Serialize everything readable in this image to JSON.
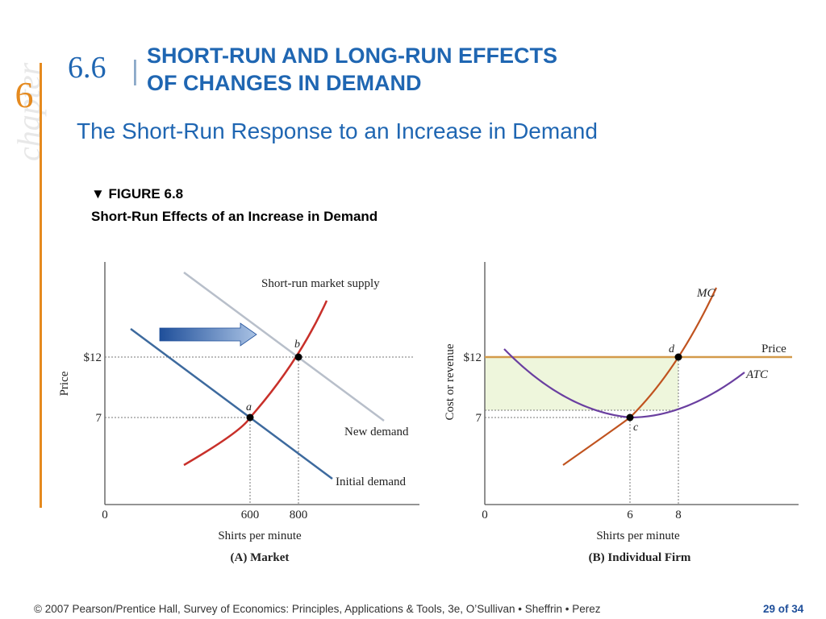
{
  "slide": {
    "chapter_word": "chapter",
    "chapter_number": "6",
    "section_number": "6.6",
    "section_separator": "|",
    "section_title_line1": "SHORT-RUN AND LONG-RUN EFFECTS",
    "section_title_line2": "OF CHANGES IN DEMAND",
    "subtitle": "The Short-Run Response to an Increase in Demand",
    "figure_label": "▼ FIGURE 6.8",
    "figure_caption": "Short-Run Effects of an Increase in Demand",
    "footer": "© 2007 Pearson/Prentice Hall, Survey of Economics: Principles, Applications & Tools, 3e, O’Sullivan • Sheffrin • Perez",
    "page": "29 of 34"
  },
  "colors": {
    "title_blue": "#1f66b2",
    "accent_orange": "#e58a1f",
    "supply_red": "#c8302a",
    "demand_blue": "#3d6a9e",
    "new_demand_gray": "#b8bfca",
    "mc_orange": "#c0531f",
    "atc_purple": "#6a3fa0",
    "price_line": "#d39a4a",
    "profit_fill": "#eef6dc"
  },
  "panel_a": {
    "y_axis_label": "Price",
    "x_axis_label": "Shirts per minute",
    "panel_title": "(A) Market",
    "y_ticks": [
      "$12",
      "7"
    ],
    "x_ticks": [
      "0",
      "600",
      "800"
    ],
    "supply_label": "Short-run market supply",
    "new_demand_label": "New demand",
    "initial_demand_label": "Initial demand",
    "point_a": "a",
    "point_b": "b",
    "shift_arrow_icon": "right-arrow-icon"
  },
  "panel_b": {
    "y_axis_label": "Cost or revenue",
    "x_axis_label": "Shirts per minute",
    "panel_title": "(B) Individual Firm",
    "y_ticks": [
      "$12",
      "7"
    ],
    "x_ticks": [
      "0",
      "6",
      "8"
    ],
    "mc_label": "MC",
    "atc_label": "ATC",
    "price_label": "Price",
    "point_c": "c",
    "point_d": "d"
  }
}
